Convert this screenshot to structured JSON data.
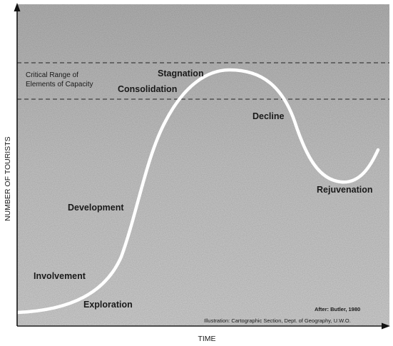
{
  "diagram": {
    "y_axis_label": "NUMBER OF TOURISTS",
    "x_axis_label": "TIME",
    "capacity_label_line1": "Critical Range of",
    "capacity_label_line2": "Elements of Capacity",
    "stages": {
      "exploration": "Exploration",
      "involvement": "Involvement",
      "development": "Development",
      "consolidation": "Consolidation",
      "stagnation": "Stagnation",
      "decline": "Decline",
      "rejuvenation": "Rejuvenation"
    },
    "source_credit": "After: Butler, 1980",
    "illustration_credit": "Illustration:  Cartographic Section, Dept. of Geography, U.W.O.",
    "colors": {
      "background": "#c4c4c4",
      "curve": "#ffffff",
      "text": "#1a1a1a",
      "axis": "#111111"
    }
  }
}
